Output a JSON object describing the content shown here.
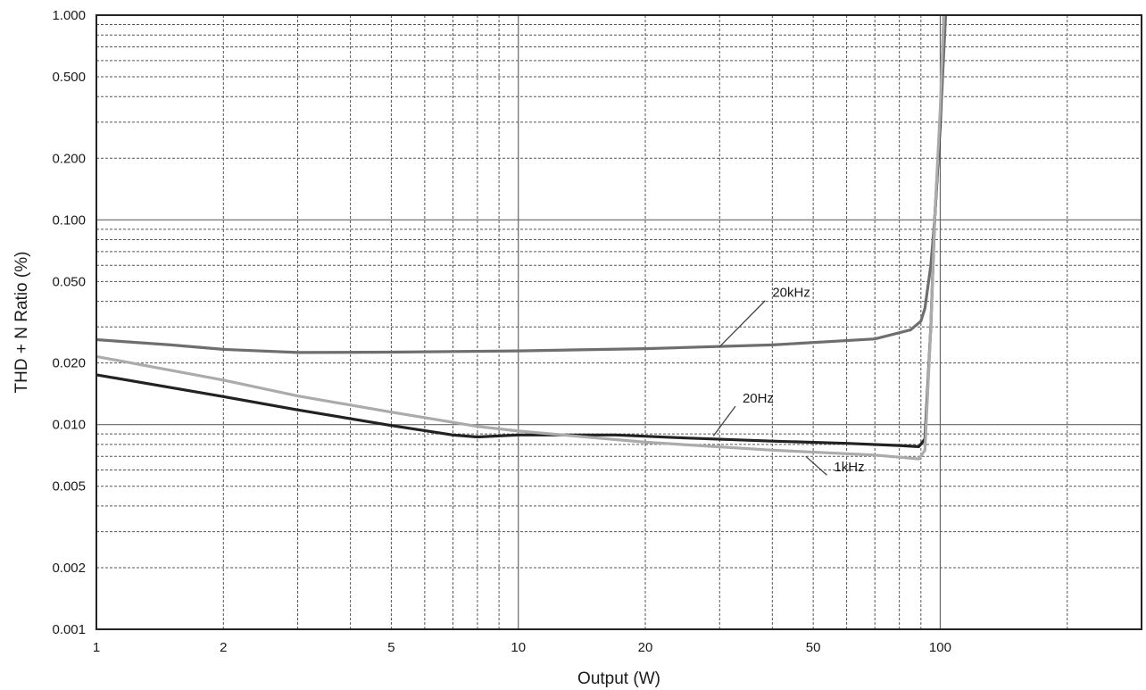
{
  "chart_data": {
    "type": "line",
    "title": "",
    "xlabel": "Output (W)",
    "ylabel": "THD + N Ratio (%)",
    "x_scale": "log",
    "y_scale": "log",
    "xlim": [
      1,
      300
    ],
    "ylim": [
      0.001,
      1.0
    ],
    "grid": true,
    "x_ticks": [
      {
        "value": 1,
        "label": "1"
      },
      {
        "value": 2,
        "label": "2"
      },
      {
        "value": 5,
        "label": "5"
      },
      {
        "value": 10,
        "label": "10"
      },
      {
        "value": 20,
        "label": "20"
      },
      {
        "value": 50,
        "label": "50"
      },
      {
        "value": 100,
        "label": "100"
      }
    ],
    "y_ticks": [
      {
        "value": 0.001,
        "label": "0.001"
      },
      {
        "value": 0.002,
        "label": "0.002"
      },
      {
        "value": 0.005,
        "label": "0.005"
      },
      {
        "value": 0.01,
        "label": "0.010"
      },
      {
        "value": 0.02,
        "label": "0.020"
      },
      {
        "value": 0.05,
        "label": "0.050"
      },
      {
        "value": 0.1,
        "label": "0.100"
      },
      {
        "value": 0.2,
        "label": "0.200"
      },
      {
        "value": 0.5,
        "label": "0.500"
      },
      {
        "value": 1.0,
        "label": "1.000"
      }
    ],
    "series": [
      {
        "name": "20kHz",
        "color": "#6e6e6e",
        "label_at": [
          40,
          0.042
        ],
        "leader_to": [
          30,
          0.024
        ],
        "points": [
          [
            1,
            0.026
          ],
          [
            1.5,
            0.0245
          ],
          [
            2,
            0.0233
          ],
          [
            3,
            0.0225
          ],
          [
            5,
            0.0226
          ],
          [
            10,
            0.0229
          ],
          [
            20,
            0.0235
          ],
          [
            40,
            0.0245
          ],
          [
            70,
            0.0262
          ],
          [
            85,
            0.029
          ],
          [
            90,
            0.032
          ],
          [
            92,
            0.037
          ],
          [
            95,
            0.06
          ],
          [
            97,
            0.1
          ],
          [
            100,
            0.3
          ],
          [
            103,
            1.0
          ]
        ]
      },
      {
        "name": "20Hz",
        "color": "#222222",
        "label_at": [
          34,
          0.0128
        ],
        "leader_to": [
          29,
          0.0088
        ],
        "points": [
          [
            1,
            0.0175
          ],
          [
            2,
            0.0137
          ],
          [
            3,
            0.0118
          ],
          [
            5,
            0.0099
          ],
          [
            7,
            0.0089
          ],
          [
            8,
            0.0087
          ],
          [
            10,
            0.0089
          ],
          [
            17,
            0.0089
          ],
          [
            25,
            0.0086
          ],
          [
            40,
            0.0083
          ],
          [
            60,
            0.0081
          ],
          [
            80,
            0.0079
          ],
          [
            89,
            0.0078
          ],
          [
            92,
            0.0085
          ],
          [
            95,
            0.03
          ],
          [
            97,
            0.1
          ],
          [
            100,
            0.3
          ],
          [
            102,
            1.0
          ]
        ]
      },
      {
        "name": "1kHz",
        "color": "#ababab",
        "label_at": [
          56,
          0.0059
        ],
        "leader_to": [
          48,
          0.007
        ],
        "points": [
          [
            1,
            0.0215
          ],
          [
            2,
            0.0165
          ],
          [
            3,
            0.0138
          ],
          [
            5,
            0.0115
          ],
          [
            8,
            0.0098
          ],
          [
            10,
            0.0093
          ],
          [
            20,
            0.0082
          ],
          [
            40,
            0.0075
          ],
          [
            70,
            0.0071
          ],
          [
            89,
            0.0068
          ],
          [
            92,
            0.0075
          ],
          [
            95,
            0.03
          ],
          [
            97,
            0.1
          ],
          [
            100,
            0.35
          ],
          [
            102,
            1.0
          ]
        ]
      }
    ]
  }
}
